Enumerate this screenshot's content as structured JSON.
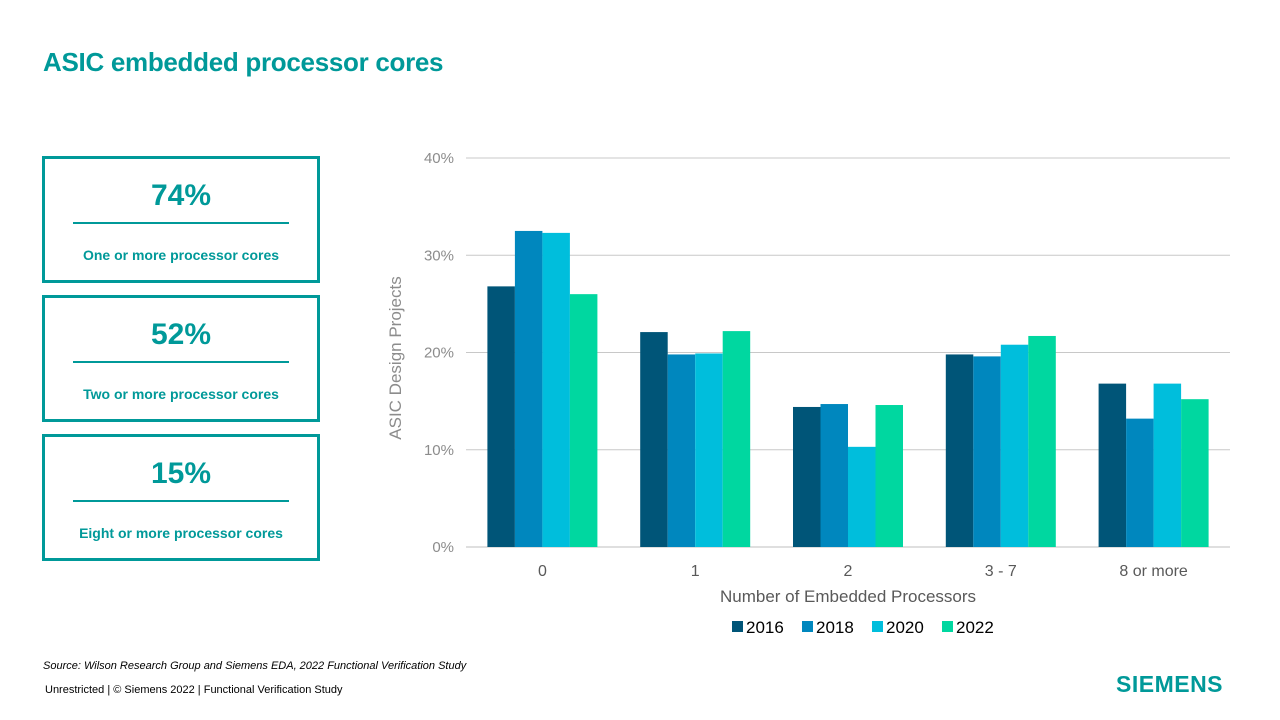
{
  "title": "ASIC embedded processor cores",
  "kpis": [
    {
      "value": "74%",
      "label": "One or more processor cores"
    },
    {
      "value": "52%",
      "label": "Two or more processor cores"
    },
    {
      "value": "15%",
      "label": "Eight or more processor cores"
    }
  ],
  "source": "Source:  Wilson Research Group and Siemens EDA, 2022 Functional Verification Study",
  "footer": "Unrestricted | © Siemens 2022 |  Functional Verification Study",
  "logo": "SIEMENS",
  "chart_data": {
    "type": "bar",
    "title": "",
    "xlabel": "Number of Embedded Processors",
    "ylabel": "ASIC Design Projects",
    "ylim": [
      0,
      40
    ],
    "yticks": [
      "0%",
      "10%",
      "20%",
      "30%",
      "40%"
    ],
    "grid": true,
    "legend_position": "bottom",
    "categories": [
      "0",
      "1",
      "2",
      "3 - 7",
      "8 or more"
    ],
    "series": [
      {
        "name": "2016",
        "color": "#005578",
        "values": [
          26.8,
          22.1,
          14.4,
          19.8,
          16.8
        ]
      },
      {
        "name": "2018",
        "color": "#0087be",
        "values": [
          32.5,
          19.8,
          14.7,
          19.6,
          13.2
        ]
      },
      {
        "name": "2020",
        "color": "#00bedc",
        "values": [
          32.3,
          19.9,
          10.3,
          20.8,
          16.8
        ]
      },
      {
        "name": "2022",
        "color": "#00d7a0",
        "values": [
          26.0,
          22.2,
          14.6,
          21.7,
          15.2
        ]
      }
    ]
  }
}
